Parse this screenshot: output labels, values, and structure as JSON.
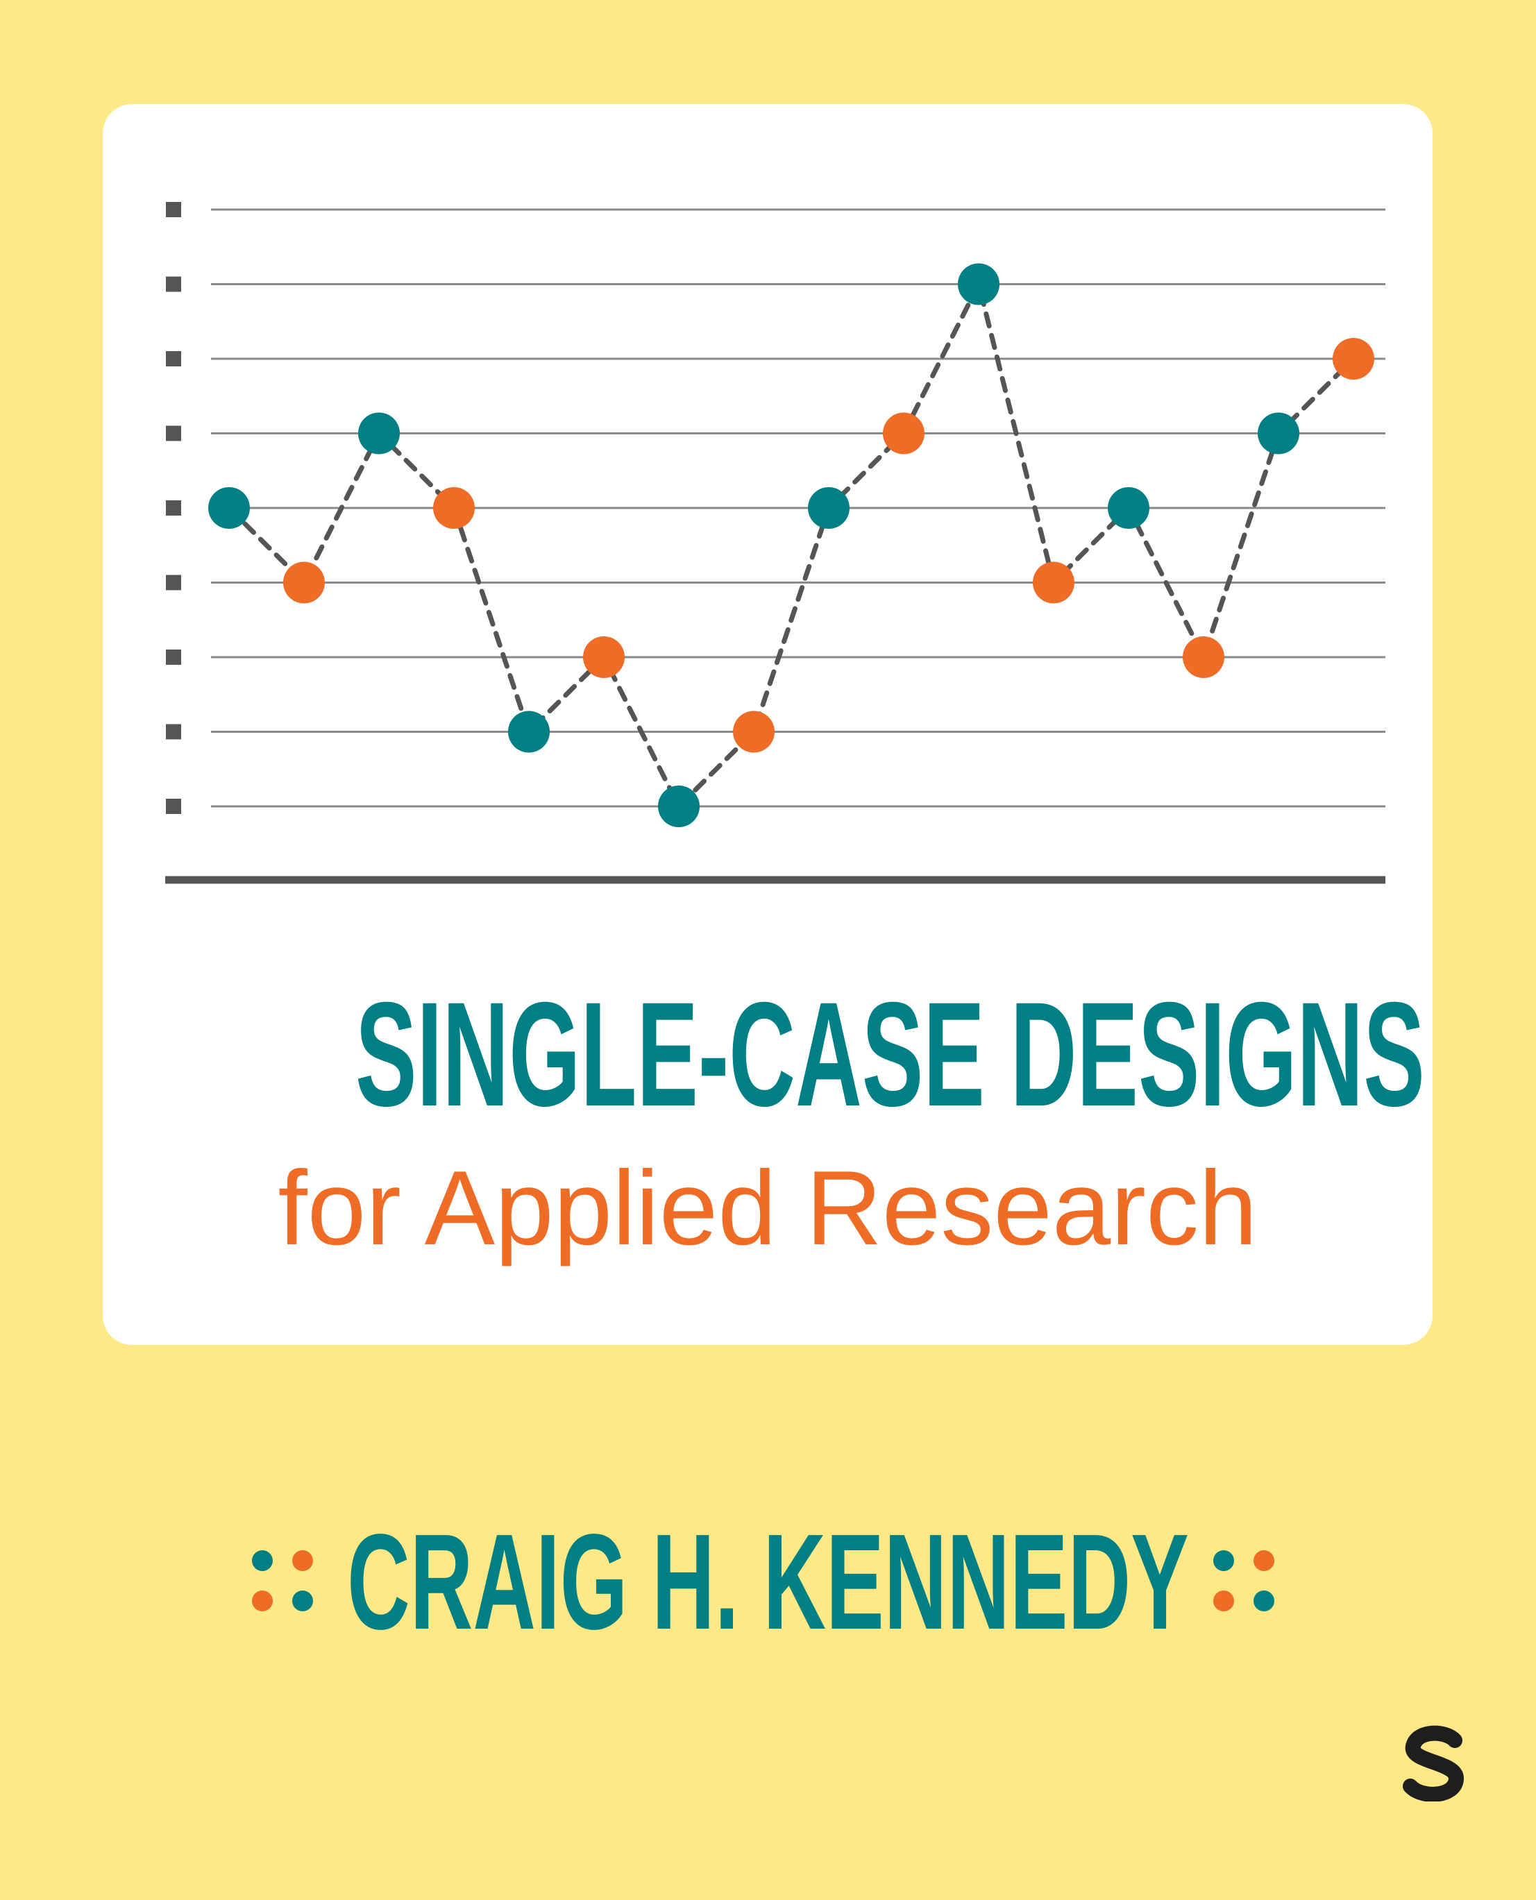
{
  "book": {
    "title": "SINGLE-CASE DESIGNS",
    "subtitle": "for Applied Research",
    "author": "CRAIG H. KENNEDY",
    "publisher_logo": "S"
  },
  "colors": {
    "background": "#fee986",
    "card": "#ffffff",
    "teal": "#008084",
    "orange": "#ee6c25",
    "grid": "#8a8a8a",
    "axis": "#555555",
    "publisher": "#1e1e1e"
  },
  "chart_data": {
    "type": "line",
    "title": "",
    "xlabel": "",
    "ylabel": "",
    "grid": true,
    "ylim": [
      0,
      8
    ],
    "dashed_connector": true,
    "points": [
      {
        "x": 1,
        "y": 4,
        "color": "teal"
      },
      {
        "x": 2,
        "y": 3,
        "color": "orange"
      },
      {
        "x": 3,
        "y": 5,
        "color": "teal"
      },
      {
        "x": 4,
        "y": 4,
        "color": "orange"
      },
      {
        "x": 5,
        "y": 1,
        "color": "teal"
      },
      {
        "x": 6,
        "y": 2,
        "color": "orange"
      },
      {
        "x": 7,
        "y": 0,
        "color": "teal"
      },
      {
        "x": 8,
        "y": 1,
        "color": "orange"
      },
      {
        "x": 9,
        "y": 4,
        "color": "teal"
      },
      {
        "x": 10,
        "y": 5,
        "color": "orange"
      },
      {
        "x": 11,
        "y": 7,
        "color": "teal"
      },
      {
        "x": 12,
        "y": 3,
        "color": "orange"
      },
      {
        "x": 13,
        "y": 4,
        "color": "teal"
      },
      {
        "x": 14,
        "y": 2,
        "color": "orange"
      },
      {
        "x": 15,
        "y": 5,
        "color": "teal"
      },
      {
        "x": 16,
        "y": 6,
        "color": "orange"
      }
    ]
  }
}
